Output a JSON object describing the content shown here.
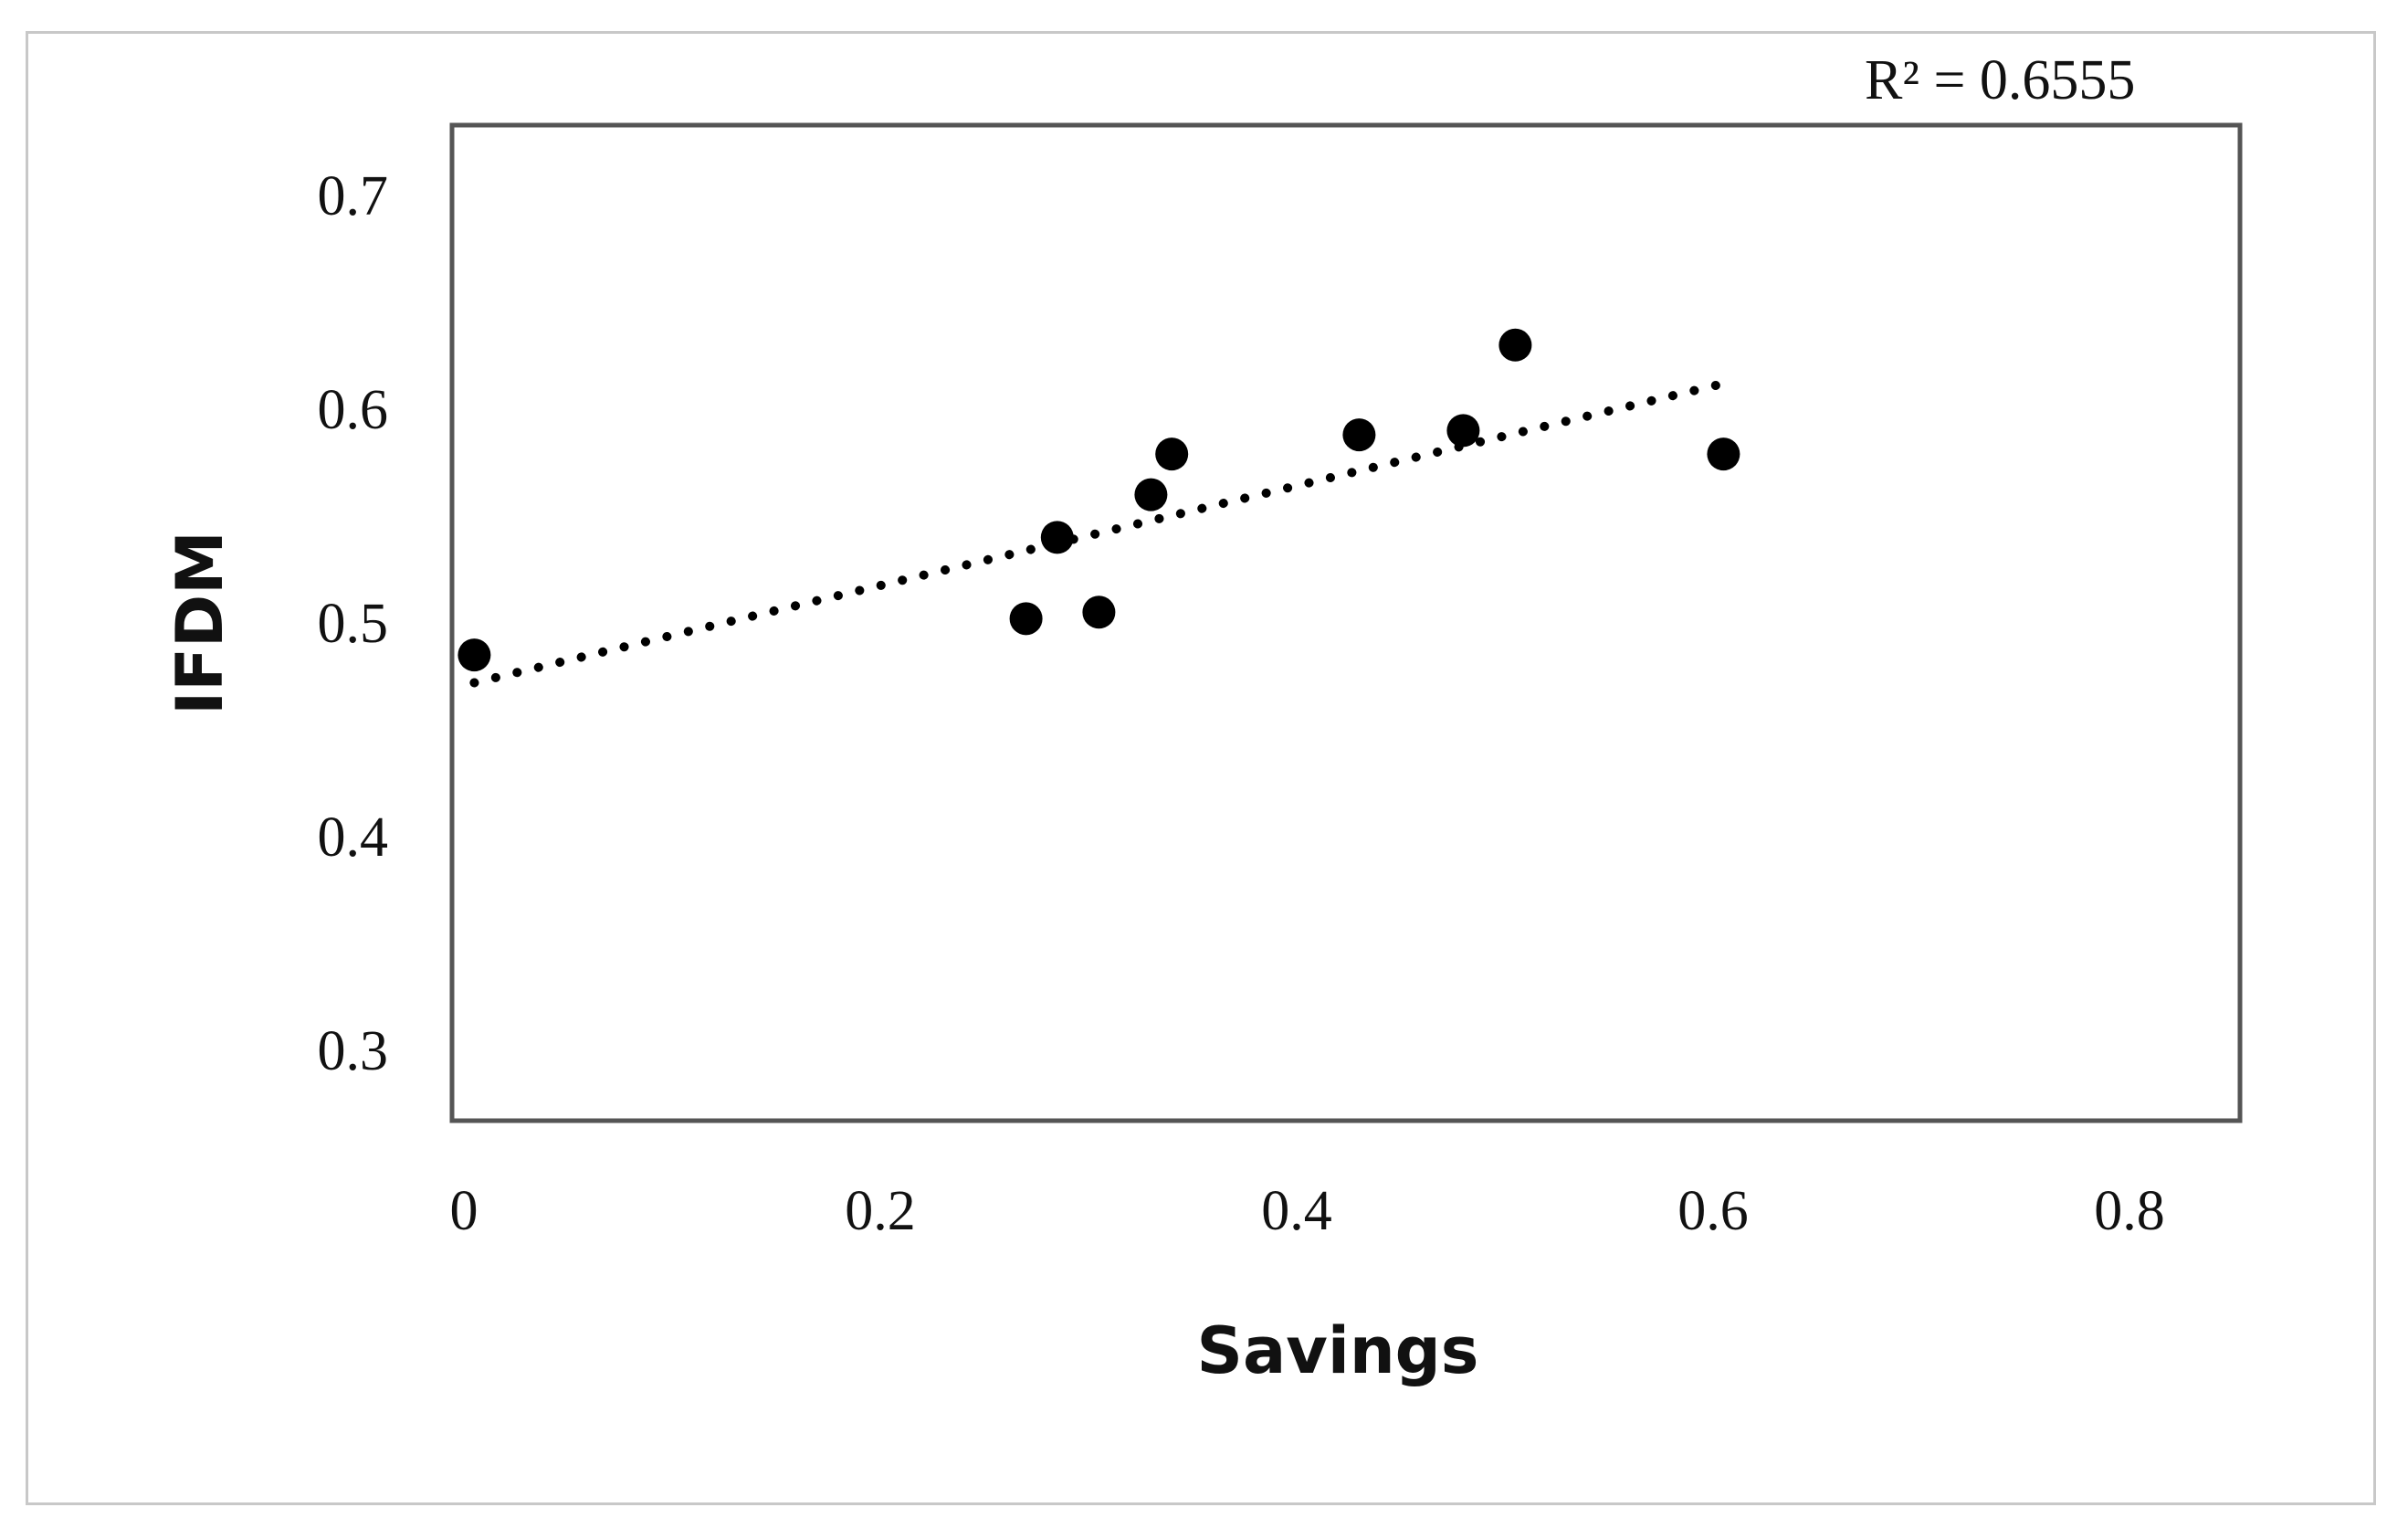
{
  "chart_data": {
    "type": "scatter",
    "xlabel": "Savings",
    "ylabel": "IFDM",
    "xlim": [
      0,
      0.8
    ],
    "ylim": [
      0.27,
      0.73
    ],
    "x_ticks": [
      "0",
      "0.2",
      "0.4",
      "0.6",
      "0.8"
    ],
    "y_ticks": [
      "0.3",
      "0.4",
      "0.5",
      "0.6",
      "0.7"
    ],
    "x_tick_values": [
      0,
      0.2,
      0.4,
      0.6,
      0.8
    ],
    "y_tick_values": [
      0.3,
      0.4,
      0.5,
      0.6,
      0.7
    ],
    "grid": false,
    "legend": "none",
    "points": [
      {
        "x": 0.005,
        "y": 0.485
      },
      {
        "x": 0.27,
        "y": 0.502
      },
      {
        "x": 0.285,
        "y": 0.54
      },
      {
        "x": 0.305,
        "y": 0.505
      },
      {
        "x": 0.33,
        "y": 0.56
      },
      {
        "x": 0.34,
        "y": 0.579
      },
      {
        "x": 0.43,
        "y": 0.588
      },
      {
        "x": 0.48,
        "y": 0.59
      },
      {
        "x": 0.505,
        "y": 0.63
      },
      {
        "x": 0.605,
        "y": 0.579
      }
    ],
    "trendline": {
      "style": "dotted",
      "start": {
        "x": 0.005,
        "y": 0.472
      },
      "end": {
        "x": 0.605,
        "y": 0.612
      }
    },
    "annotation": "R² = 0.6555",
    "colors": {
      "marker": "#000000",
      "trendline": "#000000",
      "plot_border": "#555555"
    }
  }
}
